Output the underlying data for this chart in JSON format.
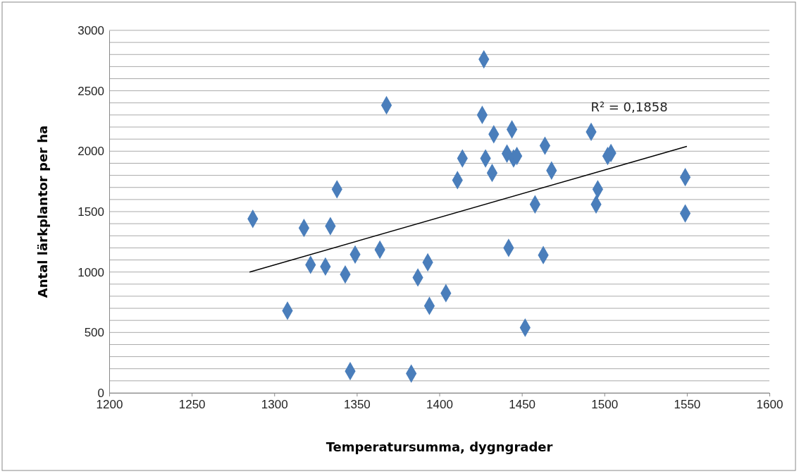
{
  "chart_data": {
    "type": "scatter",
    "xlabel": "Temperatursumma, dygngrader",
    "ylabel": "Antal lärkplantor per ha",
    "xlim": [
      1200,
      1600
    ],
    "xticks": [
      1200,
      1250,
      1300,
      1350,
      1400,
      1450,
      1500,
      1550,
      1600
    ],
    "ylim": [
      0,
      3000
    ],
    "yticks": [
      0,
      {
        "value": 100,
        "label": null
      },
      {
        "value": 200,
        "label": null
      },
      {
        "value": 300,
        "label": null
      },
      {
        "value": 400,
        "label": null
      },
      500,
      {
        "value": 600,
        "label": null
      },
      {
        "value": 700,
        "label": null
      },
      {
        "value": 800,
        "label": null
      },
      {
        "value": 900,
        "label": null
      },
      1000,
      {
        "value": 1100,
        "label": null
      },
      {
        "value": 1200,
        "label": null
      },
      {
        "value": 1300,
        "label": null
      },
      {
        "value": 1400,
        "label": null
      },
      1500,
      {
        "value": 1600,
        "label": null
      },
      {
        "value": 1700,
        "label": null
      },
      {
        "value": 1800,
        "label": null
      },
      {
        "value": 1900,
        "label": null
      },
      2000,
      {
        "value": 2100,
        "label": null
      },
      {
        "value": 2200,
        "label": null
      },
      {
        "value": 2300,
        "label": null
      },
      {
        "value": 2400,
        "label": null
      },
      2500,
      {
        "value": 2600,
        "label": null
      },
      {
        "value": 2700,
        "label": null
      },
      {
        "value": 2800,
        "label": null
      },
      {
        "value": 2900,
        "label": null
      },
      3000
    ],
    "grid": "y",
    "annotations": [
      "R² = 0,1858"
    ],
    "series": [
      {
        "color": "#4a7ebb",
        "marker": "diamond",
        "x": [
          1287,
          1308,
          1318,
          1322,
          1331,
          1334,
          1338,
          1343,
          1346,
          1349,
          1364,
          1368,
          1383,
          1387,
          1393,
          1394,
          1404,
          1411,
          1414,
          1426,
          1427,
          1428,
          1432,
          1433,
          1441,
          1442,
          1444,
          1445,
          1447,
          1452,
          1458,
          1463,
          1464,
          1468,
          1492,
          1495,
          1496,
          1502,
          1504,
          1549,
          1549
        ],
        "values": [
          1440,
          680,
          1365,
          1060,
          1045,
          1380,
          1685,
          980,
          180,
          1145,
          1185,
          2380,
          160,
          955,
          1080,
          720,
          825,
          1760,
          1940,
          2300,
          2760,
          1940,
          1820,
          2140,
          1980,
          1200,
          2180,
          1940,
          1960,
          540,
          1560,
          1140,
          2045,
          1840,
          2160,
          1560,
          1685,
          1960,
          1985,
          1785,
          1485
        ]
      },
      {
        "type": "line",
        "color": "#000000",
        "x": [
          1285,
          1550
        ],
        "values": [
          1000,
          2040
        ],
        "marker": "none"
      }
    ]
  }
}
